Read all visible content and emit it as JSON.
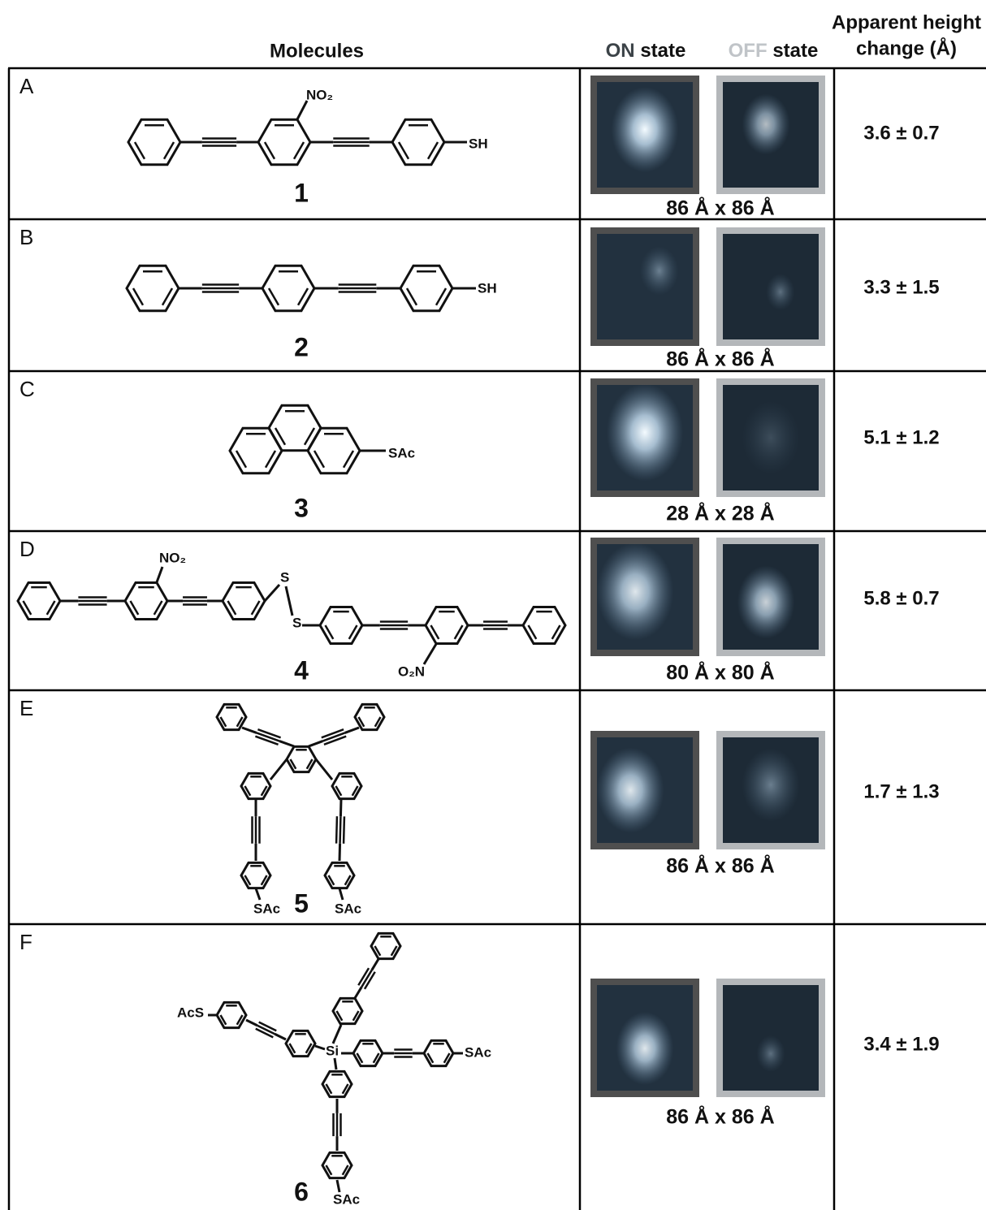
{
  "header": {
    "molecules": "Molecules",
    "on_state": [
      "ON",
      "state"
    ],
    "off_state": [
      "OFF",
      "state"
    ],
    "height": [
      "Apparent height",
      "change (Å)"
    ]
  },
  "rows": [
    {
      "letter": "A",
      "number": "1",
      "labels": [
        "NO₂",
        "SH"
      ],
      "scale": "86 Å x 86 Å",
      "height": "3.6 ± 0.7"
    },
    {
      "letter": "B",
      "number": "2",
      "labels": [
        "SH"
      ],
      "scale": "86 Å x 86 Å",
      "height": "3.3 ± 1.5"
    },
    {
      "letter": "C",
      "number": "3",
      "labels": [
        "SAc"
      ],
      "scale": "28 Å x 28 Å",
      "height": "5.1 ± 1.2"
    },
    {
      "letter": "D",
      "number": "4",
      "labels": [
        "NO₂",
        "S",
        "S",
        "O₂N"
      ],
      "scale": "80 Å x 80 Å",
      "height": "5.8 ± 0.7"
    },
    {
      "letter": "E",
      "number": "5",
      "labels": [
        "SAc",
        "SAc"
      ],
      "scale": "86 Å x 86 Å",
      "height": "1.7 ± 1.3"
    },
    {
      "letter": "F",
      "number": "6",
      "labels": [
        "AcS",
        "Si",
        "SAc",
        "SAc"
      ],
      "scale": "86 Å x 86 Å",
      "height": "3.4 ± 1.9"
    }
  ]
}
